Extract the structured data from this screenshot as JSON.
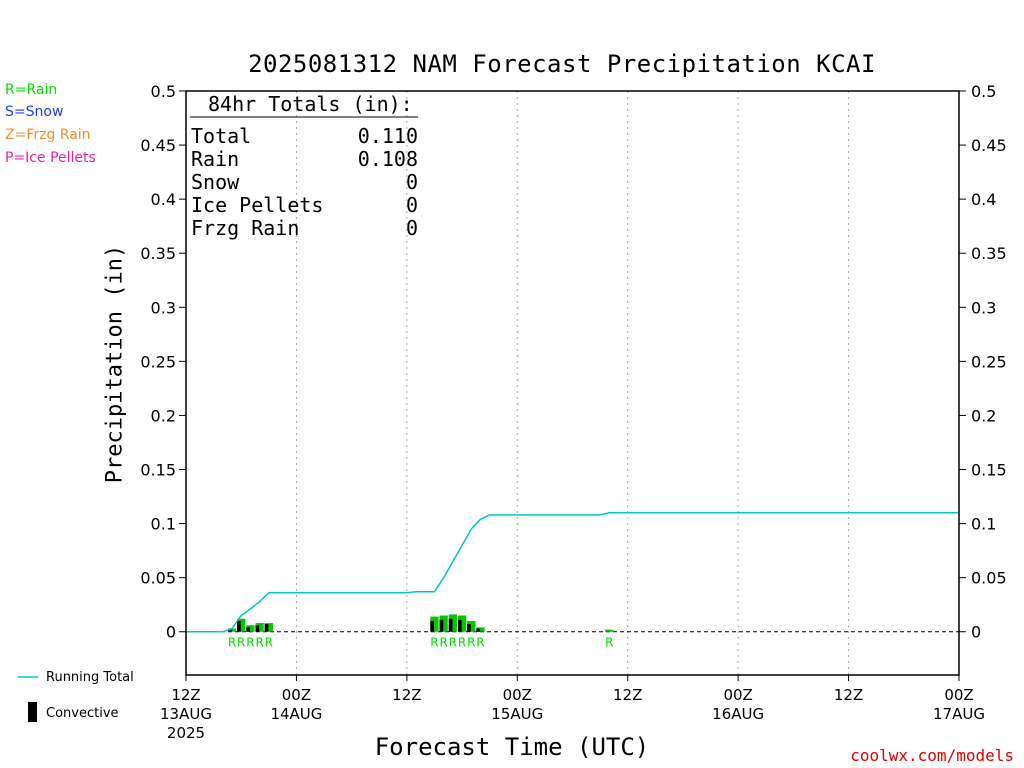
{
  "title": "2025081312 NAM Forecast Precipitation KCAI",
  "type_legend": [
    {
      "label": "R=Rain",
      "color": "#00e000"
    },
    {
      "label": "S=Snow",
      "color": "#1e3cff"
    },
    {
      "label": "Z=Frzg Rain",
      "color": "#f08c30"
    },
    {
      "label": "P=Ice Pellets",
      "color": "#f01ea0"
    }
  ],
  "totals_box": {
    "header": "84hr Totals (in):",
    "rows": [
      {
        "label": "Total",
        "value": "0.110"
      },
      {
        "label": "Rain",
        "value": "0.108"
      },
      {
        "label": "Snow",
        "value": "0"
      },
      {
        "label": "Ice Pellets",
        "value": "0"
      },
      {
        "label": "Frzg Rain",
        "value": "0"
      }
    ]
  },
  "bottom_legend": {
    "running_total": "Running Total",
    "convective": "Convective"
  },
  "credit": "coolwx.com/models",
  "colors": {
    "running_total": "#00c8c8",
    "precip_bar": "#00c800",
    "convective_bar": "#000000",
    "rain_marker": "#00e000",
    "grid": "#aaaaaa"
  },
  "chart_data": {
    "type": "bar",
    "xlabel": "Forecast Time (UTC)",
    "ylabel": "Precipitation (in)",
    "ylim": [
      -0.04,
      0.5
    ],
    "xlim_hours": [
      0,
      84
    ],
    "y_ticks": [
      "0",
      "0.05",
      "0.1",
      "0.15",
      "0.2",
      "0.25",
      "0.3",
      "0.35",
      "0.4",
      "0.45",
      "0.5"
    ],
    "x_ticks": [
      {
        "hour": 0,
        "label": "12Z",
        "date": "13AUG",
        "year": "2025"
      },
      {
        "hour": 12,
        "label": "00Z",
        "date": "14AUG",
        "year": ""
      },
      {
        "hour": 24,
        "label": "12Z",
        "date": "",
        "year": ""
      },
      {
        "hour": 36,
        "label": "00Z",
        "date": "15AUG",
        "year": ""
      },
      {
        "hour": 48,
        "label": "12Z",
        "date": "",
        "year": ""
      },
      {
        "hour": 60,
        "label": "00Z",
        "date": "16AUG",
        "year": ""
      },
      {
        "hour": 72,
        "label": "12Z",
        "date": "",
        "year": ""
      },
      {
        "hour": 84,
        "label": "00Z",
        "date": "17AUG",
        "year": ""
      }
    ],
    "grid": "vertical dotted",
    "precip_bars": [
      {
        "hour": 5,
        "total": 0.003,
        "convective": 0.002
      },
      {
        "hour": 6,
        "total": 0.012,
        "convective": 0.01
      },
      {
        "hour": 7,
        "total": 0.006,
        "convective": 0.004
      },
      {
        "hour": 8,
        "total": 0.008,
        "convective": 0.006
      },
      {
        "hour": 9,
        "total": 0.008,
        "convective": 0.007
      },
      {
        "hour": 27,
        "total": 0.014,
        "convective": 0.01
      },
      {
        "hour": 28,
        "total": 0.015,
        "convective": 0.011
      },
      {
        "hour": 29,
        "total": 0.016,
        "convective": 0.012
      },
      {
        "hour": 30,
        "total": 0.015,
        "convective": 0.011
      },
      {
        "hour": 31,
        "total": 0.01,
        "convective": 0.007
      },
      {
        "hour": 32,
        "total": 0.004,
        "convective": 0.003
      },
      {
        "hour": 46,
        "total": 0.002,
        "convective": 0.0
      }
    ],
    "type_markers": [
      {
        "hour": 5,
        "type": "R"
      },
      {
        "hour": 6,
        "type": "R"
      },
      {
        "hour": 7,
        "type": "R"
      },
      {
        "hour": 8,
        "type": "R"
      },
      {
        "hour": 9,
        "type": "R"
      },
      {
        "hour": 27,
        "type": "R"
      },
      {
        "hour": 28,
        "type": "R"
      },
      {
        "hour": 29,
        "type": "R"
      },
      {
        "hour": 30,
        "type": "R"
      },
      {
        "hour": 31,
        "type": "R"
      },
      {
        "hour": 32,
        "type": "R"
      },
      {
        "hour": 46,
        "type": "R"
      }
    ],
    "running_total": [
      [
        0,
        0.0
      ],
      [
        4,
        0.0
      ],
      [
        5,
        0.003
      ],
      [
        6,
        0.015
      ],
      [
        7,
        0.021
      ],
      [
        8,
        0.028
      ],
      [
        9,
        0.036
      ],
      [
        24,
        0.036
      ],
      [
        25,
        0.037
      ],
      [
        27,
        0.037
      ],
      [
        28,
        0.05
      ],
      [
        29,
        0.065
      ],
      [
        30,
        0.08
      ],
      [
        31,
        0.095
      ],
      [
        32,
        0.104
      ],
      [
        33,
        0.108
      ],
      [
        45,
        0.108
      ],
      [
        46,
        0.11
      ],
      [
        84,
        0.11
      ]
    ]
  }
}
